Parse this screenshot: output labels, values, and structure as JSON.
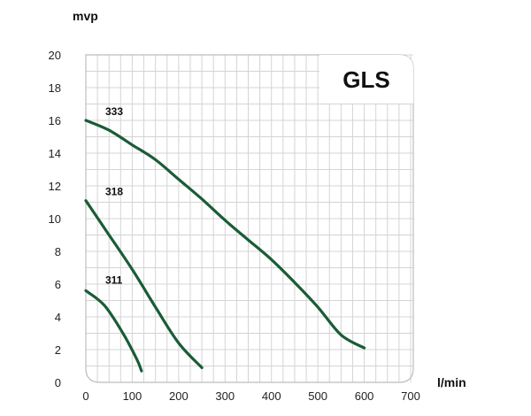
{
  "chart_data": {
    "type": "line",
    "model": "GLS",
    "xlabel": "l/min",
    "ylabel": "mvp",
    "xlim": [
      0,
      700
    ],
    "ylim": [
      0,
      20
    ],
    "xticks": [
      0,
      100,
      200,
      300,
      400,
      500,
      600,
      700
    ],
    "yticks": [
      0,
      2,
      4,
      6,
      8,
      10,
      12,
      14,
      16,
      18,
      20
    ],
    "grid": true,
    "colors": {
      "series": "#1a5c38",
      "grid": "#d4d4d4",
      "frame": "#bdbdbd"
    },
    "series": [
      {
        "name": "333",
        "points": [
          [
            0,
            16.0
          ],
          [
            50,
            15.4
          ],
          [
            100,
            14.5
          ],
          [
            150,
            13.6
          ],
          [
            200,
            12.4
          ],
          [
            250,
            11.2
          ],
          [
            300,
            9.9
          ],
          [
            350,
            8.7
          ],
          [
            400,
            7.5
          ],
          [
            450,
            6.1
          ],
          [
            500,
            4.6
          ],
          [
            550,
            2.9
          ],
          [
            600,
            2.1
          ]
        ]
      },
      {
        "name": "318",
        "points": [
          [
            0,
            11.1
          ],
          [
            50,
            9.0
          ],
          [
            100,
            6.9
          ],
          [
            150,
            4.6
          ],
          [
            200,
            2.4
          ],
          [
            250,
            0.9
          ]
        ]
      },
      {
        "name": "311",
        "points": [
          [
            0,
            5.6
          ],
          [
            40,
            4.7
          ],
          [
            80,
            3.0
          ],
          [
            110,
            1.4
          ],
          [
            120,
            0.7
          ]
        ]
      }
    ]
  }
}
